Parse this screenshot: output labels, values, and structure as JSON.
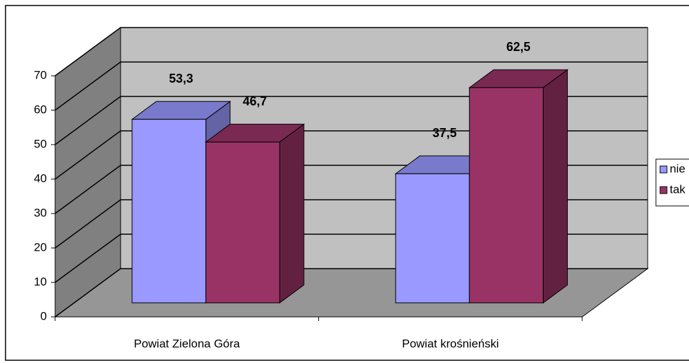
{
  "chart_data": {
    "type": "bar3d",
    "categories": [
      "Powiat Zielona Góra",
      "Powiat krośnieński"
    ],
    "series": [
      {
        "name": "nie",
        "color": "#9999ff",
        "values": [
          53.3,
          37.5
        ],
        "value_labels": [
          "53,3",
          "37,5"
        ]
      },
      {
        "name": "tak",
        "color": "#993366",
        "values": [
          46.7,
          62.5
        ],
        "value_labels": [
          "46,7",
          "62,5"
        ]
      }
    ],
    "ylim": [
      0,
      70
    ],
    "yticks": [
      0,
      10,
      20,
      30,
      40,
      50,
      60,
      70
    ],
    "grid": true,
    "legend": "right"
  }
}
